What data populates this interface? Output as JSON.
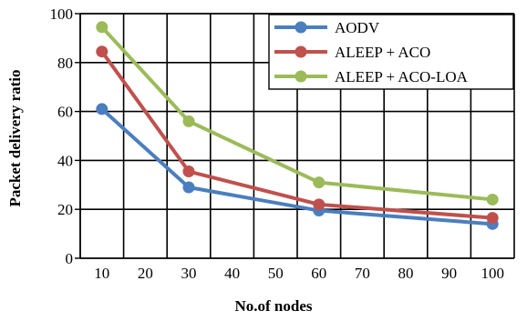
{
  "chart_data": {
    "type": "line",
    "title": "",
    "xlabel": "No.of nodes",
    "ylabel": "Packet delivery ratio",
    "x_tick_labels": [
      "10",
      "20",
      "30",
      "40",
      "50",
      "60",
      "70",
      "80",
      "90",
      "100"
    ],
    "x": [
      10,
      30,
      60,
      100
    ],
    "ylim": [
      0,
      100
    ],
    "yticks": [
      0,
      20,
      40,
      60,
      80,
      100
    ],
    "grid": true,
    "legend_position": "top-right",
    "series": [
      {
        "name": "AODV",
        "color": "#4a7ebf",
        "values": [
          61,
          29,
          19.5,
          14
        ]
      },
      {
        "name": "ALEEP + ACO",
        "color": "#c0504d",
        "values": [
          84.5,
          35.5,
          22,
          16.5
        ]
      },
      {
        "name": "ALEEP + ACO-LOA",
        "color": "#9bbb59",
        "values": [
          94.5,
          56,
          31,
          24
        ]
      }
    ]
  }
}
